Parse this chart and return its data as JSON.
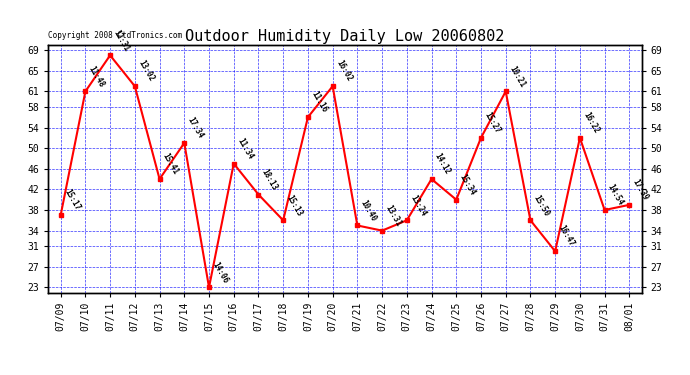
{
  "title": "Outdoor Humidity Daily Low 20060802",
  "copyright": "Copyright 2008 CtdTronics.com",
  "x_labels": [
    "07/09",
    "07/10",
    "07/11",
    "07/12",
    "07/13",
    "07/14",
    "07/15",
    "07/16",
    "07/17",
    "07/18",
    "07/19",
    "07/20",
    "07/21",
    "07/22",
    "07/23",
    "07/24",
    "07/25",
    "07/26",
    "07/27",
    "07/28",
    "07/29",
    "07/30",
    "07/31",
    "08/01"
  ],
  "x_indices": [
    0,
    1,
    2,
    3,
    4,
    5,
    6,
    7,
    8,
    9,
    10,
    11,
    12,
    13,
    14,
    15,
    16,
    17,
    18,
    19,
    20,
    21,
    22,
    23
  ],
  "y_values": [
    37,
    61,
    68,
    62,
    44,
    51,
    23,
    47,
    41,
    36,
    56,
    62,
    35,
    34,
    36,
    44,
    40,
    52,
    61,
    36,
    30,
    52,
    38,
    39
  ],
  "point_labels": [
    "15:17",
    "11:48",
    "12:31",
    "13:02",
    "15:41",
    "17:34",
    "14:06",
    "11:34",
    "18:13",
    "15:13",
    "11:16",
    "16:02",
    "10:40",
    "13:31",
    "13:24",
    "14:12",
    "15:34",
    "15:27",
    "10:21",
    "15:50",
    "16:47",
    "16:22",
    "14:54",
    "17:39"
  ],
  "y_ticks": [
    23,
    27,
    31,
    34,
    38,
    42,
    46,
    50,
    54,
    58,
    61,
    65,
    69
  ],
  "ylim": [
    22,
    70
  ],
  "xlim": [
    -0.5,
    23.5
  ],
  "line_color": "red",
  "bg_color": "#ffffff",
  "grid_color": "blue",
  "title_fontsize": 11,
  "tick_fontsize": 7,
  "annot_fontsize": 5.5,
  "label_rotation": -60
}
